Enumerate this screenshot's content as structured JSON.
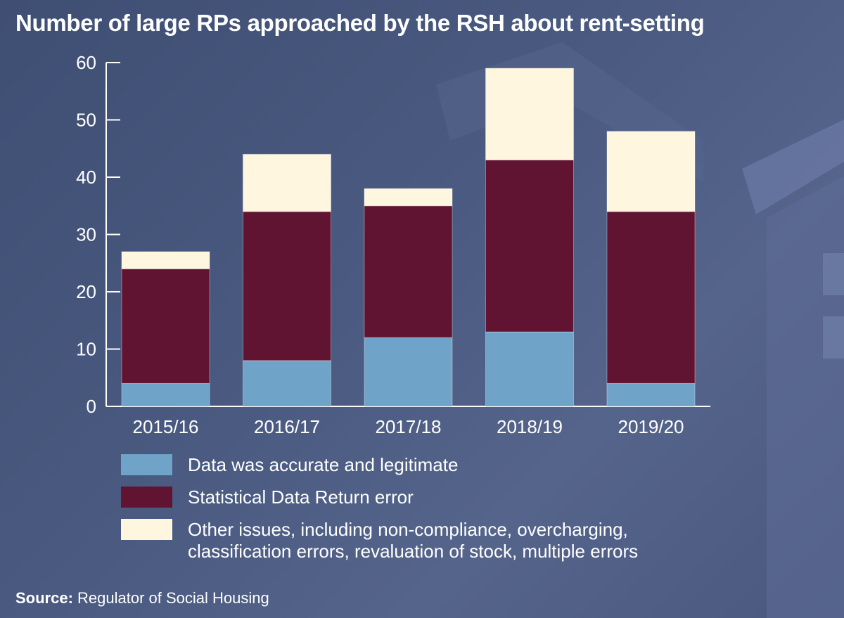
{
  "title": "Number of large RPs approached by the RSH about rent-setting",
  "source": {
    "label": "Source:",
    "text": "Regulator of Social Housing"
  },
  "colors": {
    "accurate": "#6fa3c8",
    "sdr_error": "#611432",
    "other": "#fff6e0",
    "background": "#47567c"
  },
  "chart_data": {
    "type": "bar",
    "stacked": true,
    "title": "Number of large RPs approached by the RSH about rent-setting",
    "categories": [
      "2015/16",
      "2016/17",
      "2017/18",
      "2018/19",
      "2019/20"
    ],
    "series": [
      {
        "name": "Data was accurate and legitimate",
        "values": [
          4,
          8,
          12,
          13,
          4
        ],
        "color": "#6fa3c8"
      },
      {
        "name": "Statistical Data Return error",
        "values": [
          20,
          26,
          23,
          30,
          30
        ],
        "color": "#611432"
      },
      {
        "name": "Other issues, including non-compliance, overcharging, classification errors, revaluation of stock, multiple errors",
        "values": [
          3,
          10,
          3,
          16,
          14
        ],
        "color": "#fff6e0"
      }
    ],
    "ylim": [
      0,
      60
    ],
    "yticks": [
      "0",
      "10",
      "20",
      "30",
      "40",
      "50",
      "60"
    ],
    "xlabel": "",
    "ylabel": "",
    "grid": false,
    "legend": "bottom"
  }
}
